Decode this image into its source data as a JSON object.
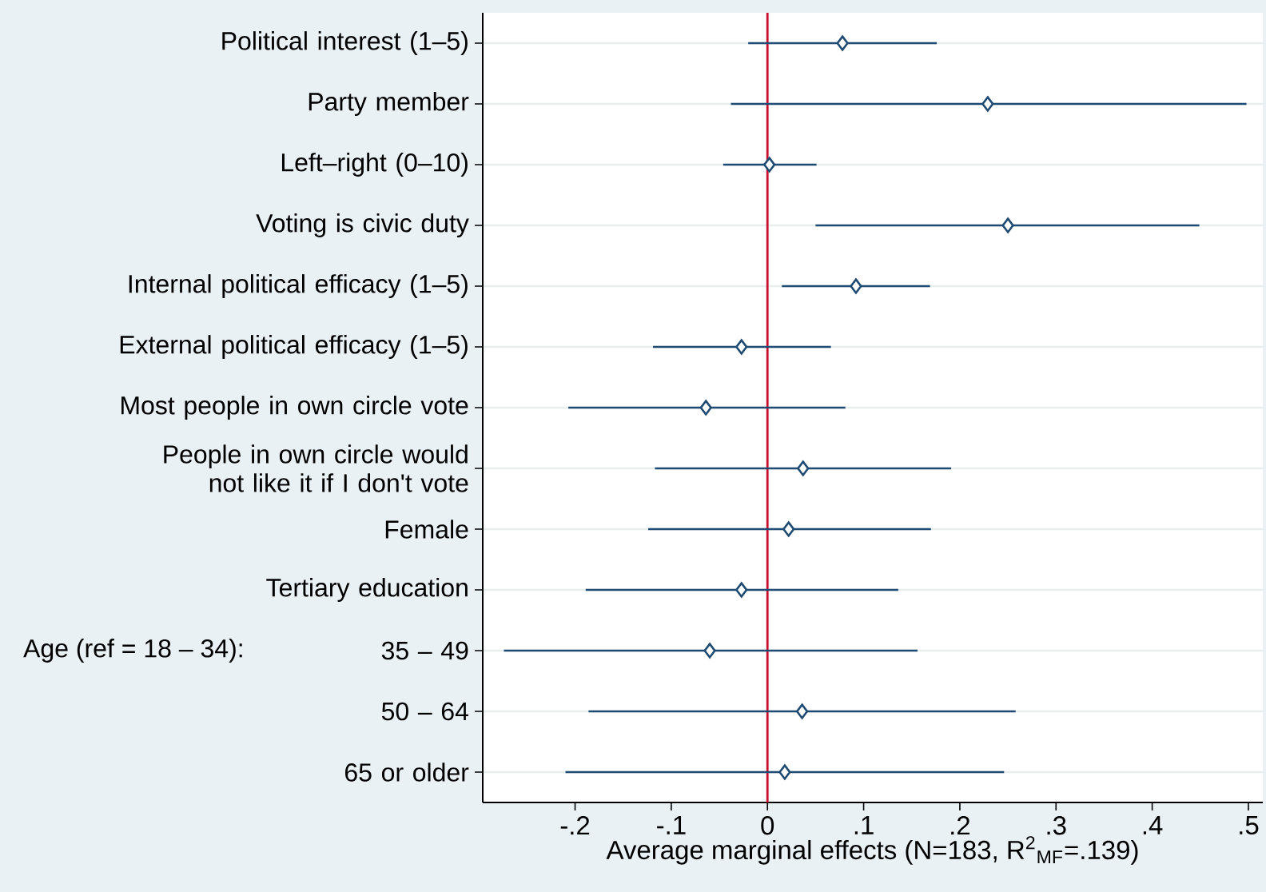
{
  "chart_data": {
    "type": "scatter",
    "orientation": "horizontal",
    "categories": [
      "Political interest (1–5)",
      "Party member",
      "Left–right (0–10)",
      "Voting is civic duty",
      "Internal political efficacy (1–5)",
      "External political efficacy (1–5)",
      "Most people in own circle vote",
      "People in own circle would not like it if I don't vote",
      "Female",
      "Tertiary education",
      "35 – 49",
      "50 – 64",
      "65 or older"
    ],
    "values": [
      0.078,
      0.229,
      0.002,
      0.25,
      0.092,
      -0.027,
      -0.064,
      0.037,
      0.022,
      -0.027,
      -0.06,
      0.036,
      0.018
    ],
    "errors": [
      [
        -0.02,
        0.176
      ],
      [
        -0.038,
        0.498
      ],
      [
        -0.046,
        0.051
      ],
      [
        0.05,
        0.449
      ],
      [
        0.015,
        0.169
      ],
      [
        -0.119,
        0.066
      ],
      [
        -0.207,
        0.081
      ],
      [
        -0.117,
        0.191
      ],
      [
        -0.124,
        0.17
      ],
      [
        -0.189,
        0.136
      ],
      [
        -0.274,
        0.156
      ],
      [
        -0.186,
        0.258
      ],
      [
        -0.21,
        0.246
      ]
    ],
    "color": "#1f4a72",
    "marker": "diamond",
    "xlim": [
      -0.296,
      0.515
    ],
    "xticks": [
      {
        "value": -0.2,
        "label": "-.2"
      },
      {
        "value": -0.1,
        "label": "-.1"
      },
      0,
      {
        "value": 0.1,
        "label": ".1"
      },
      {
        "value": 0.2,
        "label": ".2"
      },
      {
        "value": 0.3,
        "label": ".3"
      },
      {
        "value": 0.4,
        "label": ".4"
      },
      {
        "value": 0.5,
        "label": ".5"
      }
    ],
    "xlabel": "Average marginal effects (N=183, R$^{2}$$_{MF}$=.139)",
    "ref_lines": [
      {
        "axis": "x",
        "value": 0,
        "color": "#c8102e"
      }
    ],
    "grid": "y",
    "annotations": [
      "Age (ref = 18 – 34):"
    ]
  }
}
